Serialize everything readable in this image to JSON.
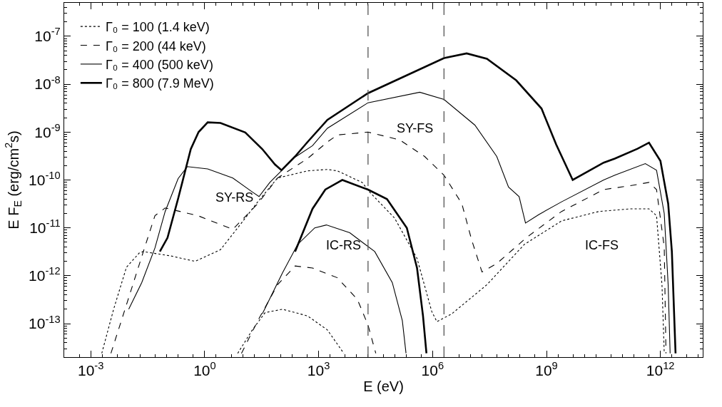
{
  "chart_data": {
    "type": "line",
    "xlabel": "E (eV)",
    "ylabel": "E F$_{E}$ (erg/cm$^{2}$s)",
    "log": "xy",
    "legend": "top left",
    "marker": "none",
    "xlim": [
      0.0002,
      13000000000000.0
    ],
    "ylim": [
      2e-14,
      5e-07
    ],
    "xticks": [
      {
        "value": 0.001,
        "label": "10$^{-3}$"
      },
      {
        "value": 1,
        "label": "10$^{0}$"
      },
      {
        "value": 1000.0,
        "label": "10$^{3}$"
      },
      {
        "value": 1000000.0,
        "label": "10$^{6}$"
      },
      {
        "value": 1000000000.0,
        "label": "10$^{9}$"
      },
      {
        "value": 1000000000000.0,
        "label": "10$^{12}$"
      }
    ],
    "yticks": [
      {
        "value": 1e-13,
        "label": "10$^{-13}$"
      },
      {
        "value": 1e-12,
        "label": "10$^{-12}$"
      },
      {
        "value": 1e-11,
        "label": "10$^{-11}$"
      },
      {
        "value": 1e-10,
        "label": "10$^{-10}$"
      },
      {
        "value": 1e-09,
        "label": "10$^{-9}$"
      },
      {
        "value": 1e-08,
        "label": "10$^{-8}$"
      },
      {
        "value": 1e-07,
        "label": "10$^{-7}$"
      }
    ],
    "ref_lines": [
      {
        "axis": "x",
        "value": 20000.0,
        "color": "#555555",
        "line_style": "dashed"
      },
      {
        "axis": "x",
        "value": 2000000.0,
        "color": "#555555",
        "line_style": "dashed"
      }
    ],
    "annotations": [
      "SY-RS",
      "SY-FS",
      "IC-RS",
      "IC-FS"
    ],
    "series": [
      {
        "name": "Γ₀ = 100 (1.4 keV)",
        "color": "#000000",
        "line_style": "dotted",
        "x": [
          0.00195,
          0.004,
          0.0087,
          0.019,
          0.024,
          0.126,
          0.56,
          2.6,
          7.4,
          25,
          83,
          510,
          1700,
          3100,
          14000.0,
          22000.0,
          100000.0,
          390000.0,
          950000.0,
          1300000.0,
          3200000.0,
          27000000.0,
          260000000.0,
          2500000000.0,
          24000000000.0,
          160000000000.0,
          500000000000.0,
          790000000000.0,
          1100000000000.0,
          1260000000000.0
        ],
        "values": [
          2.4e-14,
          2e-13,
          1.5e-12,
          3e-12,
          3.2e-12,
          2.6e-12,
          2e-12,
          3.5e-12,
          1e-11,
          3.5e-11,
          1.1e-10,
          1.55e-10,
          1.66e-10,
          1.55e-10,
          8.9e-11,
          5.6e-11,
          1.6e-11,
          2.3e-12,
          1.8e-13,
          1.1e-13,
          1.6e-13,
          6.5e-13,
          4.5e-12,
          1.4e-11,
          2.2e-11,
          2.5e-11,
          2.5e-11,
          1.8e-11,
          6.3e-13,
          2.4e-14
        ]
      },
      {
        "name": "Γ₀ = 200 (44 keV)",
        "color": "#000000",
        "line_style": "dashed",
        "x": [
          0.0034,
          0.01,
          0.026,
          0.049,
          0.091,
          0.66,
          5.5,
          25,
          83,
          510,
          1700,
          3100,
          20000.0,
          135000.0,
          620000.0,
          2000000.0,
          5900000.0,
          10700000.0,
          20000000.0,
          49000000.0,
          300000000.0,
          2500000000.0,
          32000000000.0,
          160000000000.0,
          500000000000.0,
          790000000000.0,
          1260000000000.0,
          1400000000000.0
        ],
        "values": [
          2.4e-14,
          3.5e-13,
          3.8e-12,
          1.8e-11,
          2.6e-11,
          1.8e-11,
          9.3e-12,
          3.2e-11,
          1.1e-10,
          2.8e-10,
          6.2e-10,
          8.7e-10,
          1e-09,
          6.9e-10,
          3.1e-10,
          1.26e-10,
          3.2e-11,
          5.6e-12,
          1.2e-12,
          1.8e-12,
          6.3e-12,
          2.2e-11,
          6.3e-11,
          7.6e-11,
          8.9e-11,
          6.3e-11,
          4e-12,
          2.4e-14
        ]
      },
      {
        "name": "Γ₀ = 400 (500 keV)",
        "color": "#000000",
        "line_style": "solid",
        "x": [
          0.01,
          0.022,
          0.049,
          0.091,
          0.2,
          0.35,
          1.2,
          5.5,
          18,
          27,
          52,
          240,
          690,
          1700,
          20000.0,
          460000.0,
          2000000.0,
          13000000.0,
          49000000.0,
          100000000.0,
          190000000.0,
          280000000.0,
          630000000.0,
          2500000000.0,
          32000000000.0,
          63000000000.0,
          400000000000.0,
          790000000000.0,
          1260000000000.0,
          1600000000000.0,
          1800000000000.0
        ],
        "values": [
          2e-13,
          7.2e-13,
          3.8e-12,
          2.2e-11,
          1.07e-10,
          1.9e-10,
          1.7e-10,
          1.1e-10,
          5.6e-11,
          4.5e-11,
          8.9e-11,
          3e-10,
          5.2e-10,
          1.2e-09,
          4.1e-09,
          6.8e-09,
          4.8e-09,
          1.4e-09,
          3.1e-10,
          7.1e-11,
          4.5e-11,
          1.26e-11,
          1.9e-11,
          3.5e-11,
          1e-10,
          1.26e-10,
          2.2e-10,
          1.6e-10,
          2e-11,
          6.3e-13,
          2.4e-14
        ]
      },
      {
        "name": "Γ₀ = 800 (7.9 MeV)",
        "color": "#000000",
        "line_style": "solid",
        "x": [
          0.066,
          0.105,
          0.2,
          0.43,
          0.69,
          1.2,
          2.6,
          11.7,
          33,
          71,
          105,
          240,
          510,
          1700,
          20000.0,
          2000000.0,
          7900000.0,
          27000000.0,
          160000000.0,
          740000000.0,
          1800000000.0,
          4900000000.0,
          32000000000.0,
          63000000000.0,
          250000000000.0,
          500000000000.0,
          1000000000000.0,
          1600000000000.0,
          2000000000000.0,
          2500000000000.0
        ],
        "values": [
          3.2e-12,
          6.2e-12,
          4.1e-11,
          4.4e-10,
          1e-09,
          1.6e-09,
          1.55e-09,
          9.8e-10,
          4.4e-10,
          2.1e-10,
          1.6e-10,
          3.1e-10,
          6.2e-10,
          1.8e-09,
          6.5e-09,
          3.5e-08,
          4.4e-08,
          3.4e-08,
          1.2e-08,
          3.1e-09,
          5.5e-10,
          1e-10,
          2.3e-10,
          2.8e-10,
          4.5e-10,
          6e-10,
          2.5e-10,
          3.2e-11,
          3.2e-12,
          2.4e-14
        ]
      },
      {
        "color": "#000000",
        "line_style": "dotted",
        "x": [
          7.4,
          18,
          39,
          112,
          510,
          1700,
          4600
        ],
        "values": [
          2.4e-14,
          7.4e-14,
          1.7e-13,
          2e-13,
          1.45e-13,
          7.4e-14,
          2.4e-14
        ]
      },
      {
        "color": "#000000",
        "line_style": "dashed",
        "x": [
          9.3,
          25,
          83,
          240,
          690,
          3100,
          10500.0,
          20000.0,
          32000.0
        ],
        "values": [
          2.4e-14,
          1.15e-13,
          6.5e-13,
          1.6e-12,
          1.45e-12,
          9.1e-13,
          3.2e-13,
          9.3e-14,
          2.4e-14
        ]
      },
      {
        "color": "#000000",
        "line_style": "solid",
        "x": [
          33,
          112,
          280,
          790,
          1600,
          6600,
          30000.0,
          87000.0,
          160000.0,
          200000.0
        ],
        "values": [
          1.6e-13,
          1.15e-12,
          4.5e-12,
          1e-11,
          1.15e-11,
          7.9e-12,
          3.2e-12,
          7.2e-13,
          1.15e-13,
          2.4e-14
        ]
      },
      {
        "color": "#000000",
        "line_style": "solid",
        "x": [
          240,
          690,
          1500,
          4200,
          20000.0,
          63000.0,
          210000.0,
          390000.0,
          560000.0,
          690000.0
        ],
        "values": [
          3.2e-12,
          2.5e-11,
          6.3e-11,
          1e-10,
          6.3e-11,
          4e-11,
          1e-11,
          1.45e-12,
          1.45e-13,
          2.4e-14
        ]
      }
    ]
  }
}
